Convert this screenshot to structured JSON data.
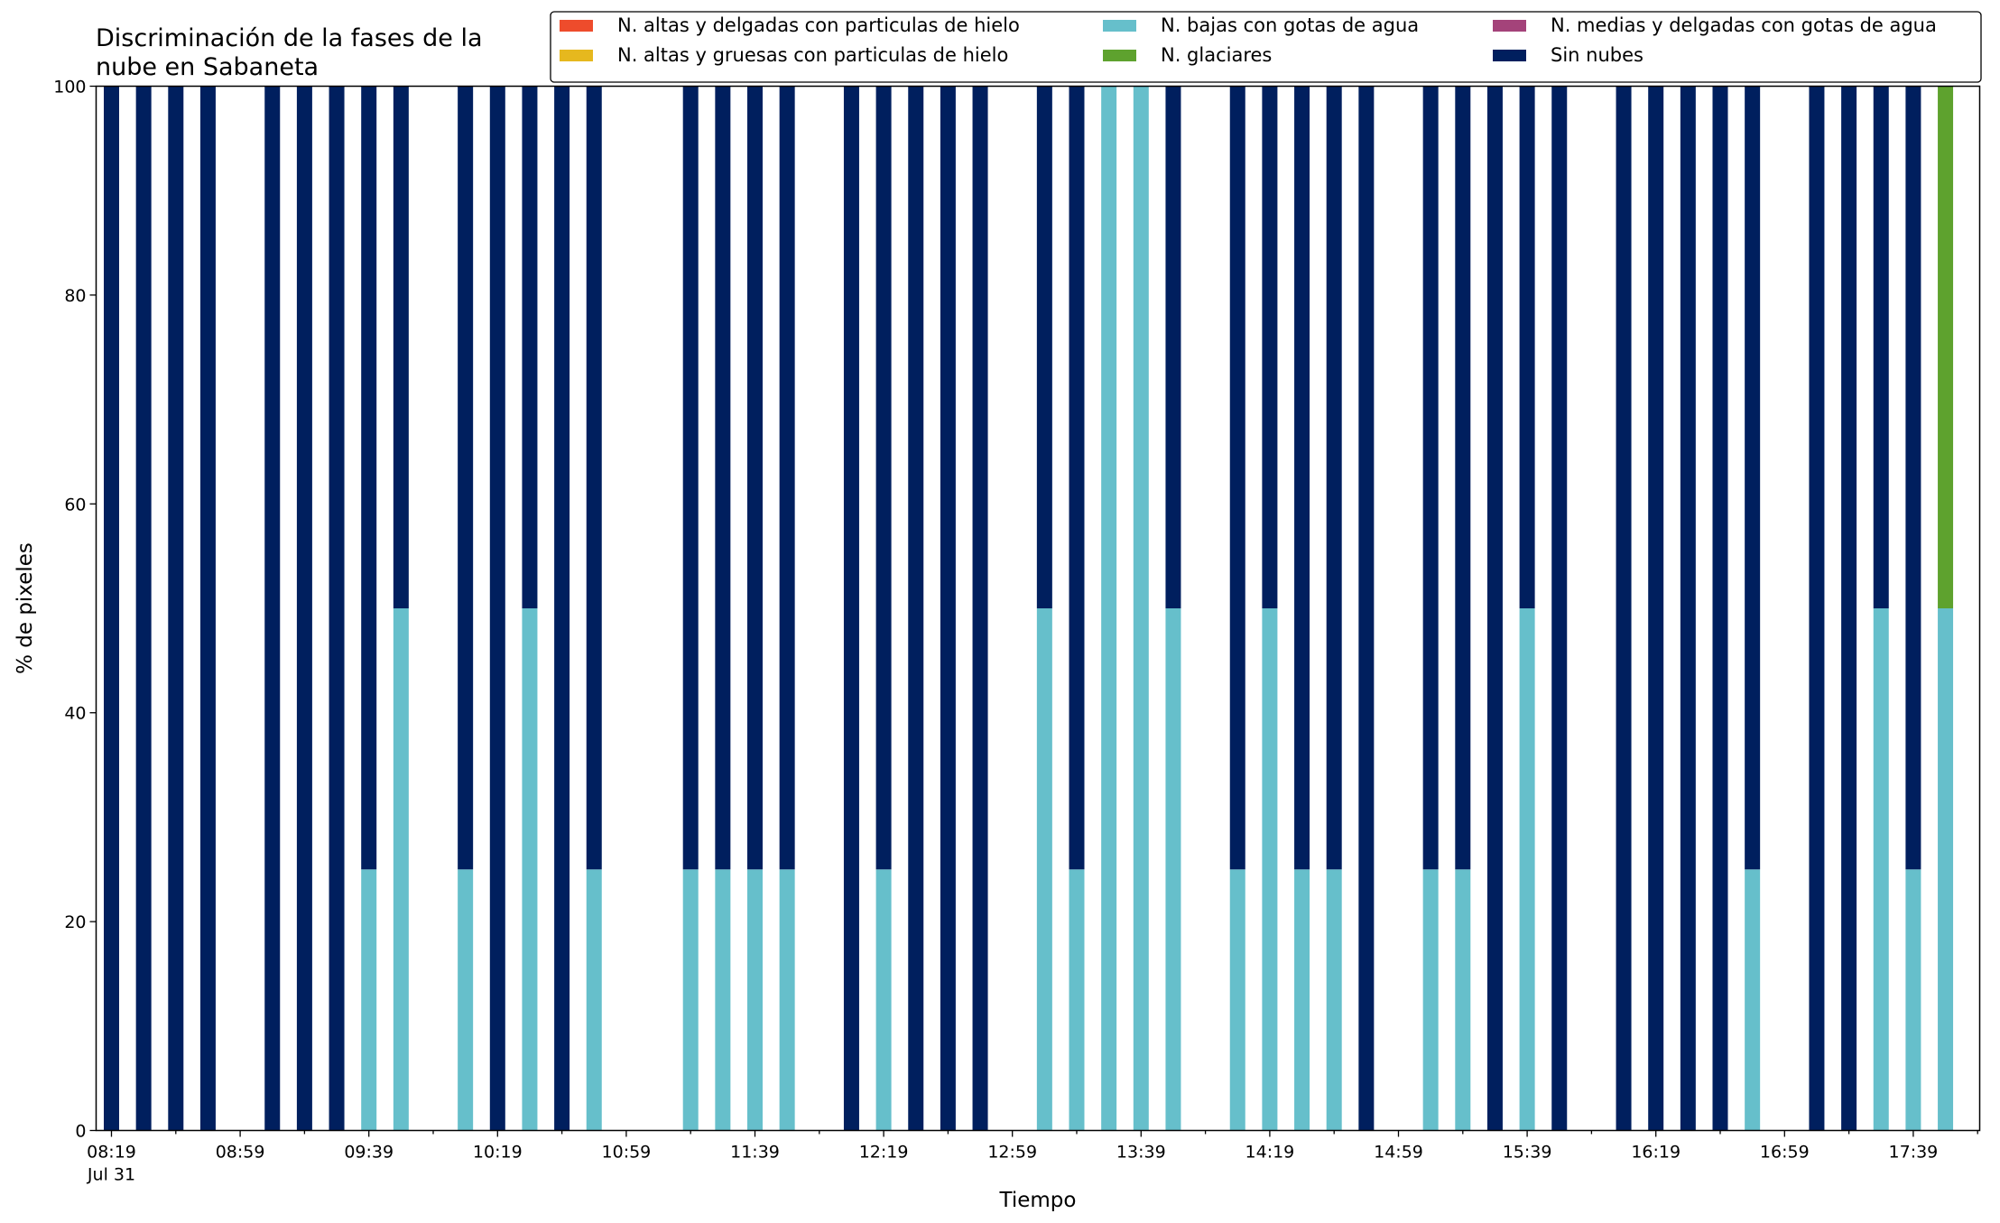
{
  "chart_data": {
    "type": "bar",
    "stacked": true,
    "title_lines": [
      "Discriminación de la fases de la",
      "nube en Sabaneta"
    ],
    "xlabel": "Tiempo",
    "ylabel": "% de pixeles",
    "ylim": [
      0,
      100
    ],
    "yticks": [
      0,
      20,
      40,
      60,
      80,
      100
    ],
    "grid": false,
    "legend_position": "top-right",
    "x_start": "08:19",
    "x_step_minutes": 10,
    "x_tick_labels": [
      "08:19",
      "08:59",
      "09:39",
      "10:19",
      "10:59",
      "11:39",
      "12:19",
      "12:59",
      "13:39",
      "14:19",
      "14:59",
      "15:39",
      "16:19",
      "16:59",
      "17:39"
    ],
    "x_date_label": "Jul 31",
    "series": [
      {
        "name": "N. altas y delgadas con particulas de hielo",
        "color": "#ee4c2c"
      },
      {
        "name": "N. altas y gruesas con particulas de hielo",
        "color": "#e6b81e"
      },
      {
        "name": "N. bajas con gotas de agua",
        "color": "#66bfcb"
      },
      {
        "name": "N. glaciares",
        "color": "#5ea22e"
      },
      {
        "name": "N. medias y delgadas con gotas de agua",
        "color": "#a4437a"
      },
      {
        "name": "Sin nubes",
        "color": "#001f5e"
      }
    ],
    "bars": [
      {
        "time": "08:19",
        "values": [
          0,
          0,
          0,
          0,
          0,
          100
        ]
      },
      {
        "time": "08:29",
        "values": [
          0,
          0,
          0,
          0,
          0,
          100
        ]
      },
      {
        "time": "08:39",
        "values": [
          0,
          0,
          0,
          0,
          0,
          100
        ]
      },
      {
        "time": "08:49",
        "values": [
          0,
          0,
          0,
          0,
          0,
          100
        ]
      },
      {
        "time": "09:09",
        "values": [
          0,
          0,
          0,
          0,
          0,
          100
        ]
      },
      {
        "time": "09:19",
        "values": [
          0,
          0,
          0,
          0,
          0,
          100
        ]
      },
      {
        "time": "09:29",
        "values": [
          0,
          0,
          0,
          0,
          0,
          100
        ]
      },
      {
        "time": "09:39",
        "values": [
          0,
          0,
          25,
          0,
          0,
          75
        ]
      },
      {
        "time": "09:49",
        "values": [
          0,
          0,
          50,
          0,
          0,
          50
        ]
      },
      {
        "time": "10:09",
        "values": [
          0,
          0,
          25,
          0,
          0,
          75
        ]
      },
      {
        "time": "10:19",
        "values": [
          0,
          0,
          0,
          0,
          0,
          100
        ]
      },
      {
        "time": "10:29",
        "values": [
          0,
          0,
          50,
          0,
          0,
          50
        ]
      },
      {
        "time": "10:39",
        "values": [
          0,
          0,
          0,
          0,
          0,
          100
        ]
      },
      {
        "time": "10:49",
        "values": [
          0,
          0,
          25,
          0,
          0,
          75
        ]
      },
      {
        "time": "11:19",
        "values": [
          0,
          0,
          25,
          0,
          0,
          75
        ]
      },
      {
        "time": "11:29",
        "values": [
          0,
          0,
          25,
          0,
          0,
          75
        ]
      },
      {
        "time": "11:39",
        "values": [
          0,
          0,
          25,
          0,
          0,
          75
        ]
      },
      {
        "time": "11:49",
        "values": [
          0,
          0,
          25,
          0,
          0,
          75
        ]
      },
      {
        "time": "12:09",
        "values": [
          0,
          0,
          0,
          0,
          0,
          100
        ]
      },
      {
        "time": "12:19",
        "values": [
          0,
          0,
          25,
          0,
          0,
          75
        ]
      },
      {
        "time": "12:29",
        "values": [
          0,
          0,
          0,
          0,
          0,
          100
        ]
      },
      {
        "time": "12:39",
        "values": [
          0,
          0,
          0,
          0,
          0,
          100
        ]
      },
      {
        "time": "12:49",
        "values": [
          0,
          0,
          0,
          0,
          0,
          100
        ]
      },
      {
        "time": "13:09",
        "values": [
          0,
          0,
          50,
          0,
          0,
          50
        ]
      },
      {
        "time": "13:19",
        "values": [
          0,
          0,
          25,
          0,
          0,
          75
        ]
      },
      {
        "time": "13:29",
        "values": [
          0,
          0,
          100,
          0,
          0,
          0
        ]
      },
      {
        "time": "13:39",
        "values": [
          0,
          0,
          100,
          0,
          0,
          0
        ]
      },
      {
        "time": "13:49",
        "values": [
          0,
          0,
          50,
          0,
          0,
          50
        ]
      },
      {
        "time": "14:09",
        "values": [
          0,
          0,
          25,
          0,
          0,
          75
        ]
      },
      {
        "time": "14:19",
        "values": [
          0,
          0,
          50,
          0,
          0,
          50
        ]
      },
      {
        "time": "14:29",
        "values": [
          0,
          0,
          25,
          0,
          0,
          75
        ]
      },
      {
        "time": "14:39",
        "values": [
          0,
          0,
          25,
          0,
          0,
          75
        ]
      },
      {
        "time": "14:49",
        "values": [
          0,
          0,
          0,
          0,
          0,
          100
        ]
      },
      {
        "time": "15:09",
        "values": [
          0,
          0,
          25,
          0,
          0,
          75
        ]
      },
      {
        "time": "15:19",
        "values": [
          0,
          0,
          25,
          0,
          0,
          75
        ]
      },
      {
        "time": "15:29",
        "values": [
          0,
          0,
          0,
          0,
          0,
          100
        ]
      },
      {
        "time": "15:39",
        "values": [
          0,
          0,
          50,
          0,
          0,
          50
        ]
      },
      {
        "time": "15:49",
        "values": [
          0,
          0,
          0,
          0,
          0,
          100
        ]
      },
      {
        "time": "16:09",
        "values": [
          0,
          0,
          0,
          0,
          0,
          100
        ]
      },
      {
        "time": "16:19",
        "values": [
          0,
          0,
          0,
          0,
          0,
          100
        ]
      },
      {
        "time": "16:29",
        "values": [
          0,
          0,
          0,
          0,
          0,
          100
        ]
      },
      {
        "time": "16:39",
        "values": [
          0,
          0,
          0,
          0,
          0,
          100
        ]
      },
      {
        "time": "16:49",
        "values": [
          0,
          0,
          25,
          0,
          0,
          75
        ]
      },
      {
        "time": "17:09",
        "values": [
          0,
          0,
          0,
          0,
          0,
          100
        ]
      },
      {
        "time": "17:19",
        "values": [
          0,
          0,
          0,
          0,
          0,
          100
        ]
      },
      {
        "time": "17:29",
        "values": [
          0,
          0,
          50,
          0,
          0,
          50
        ]
      },
      {
        "time": "17:39",
        "values": [
          0,
          0,
          25,
          0,
          0,
          75
        ]
      },
      {
        "time": "17:49",
        "values": [
          0,
          0,
          50,
          50,
          0,
          0
        ]
      }
    ]
  }
}
